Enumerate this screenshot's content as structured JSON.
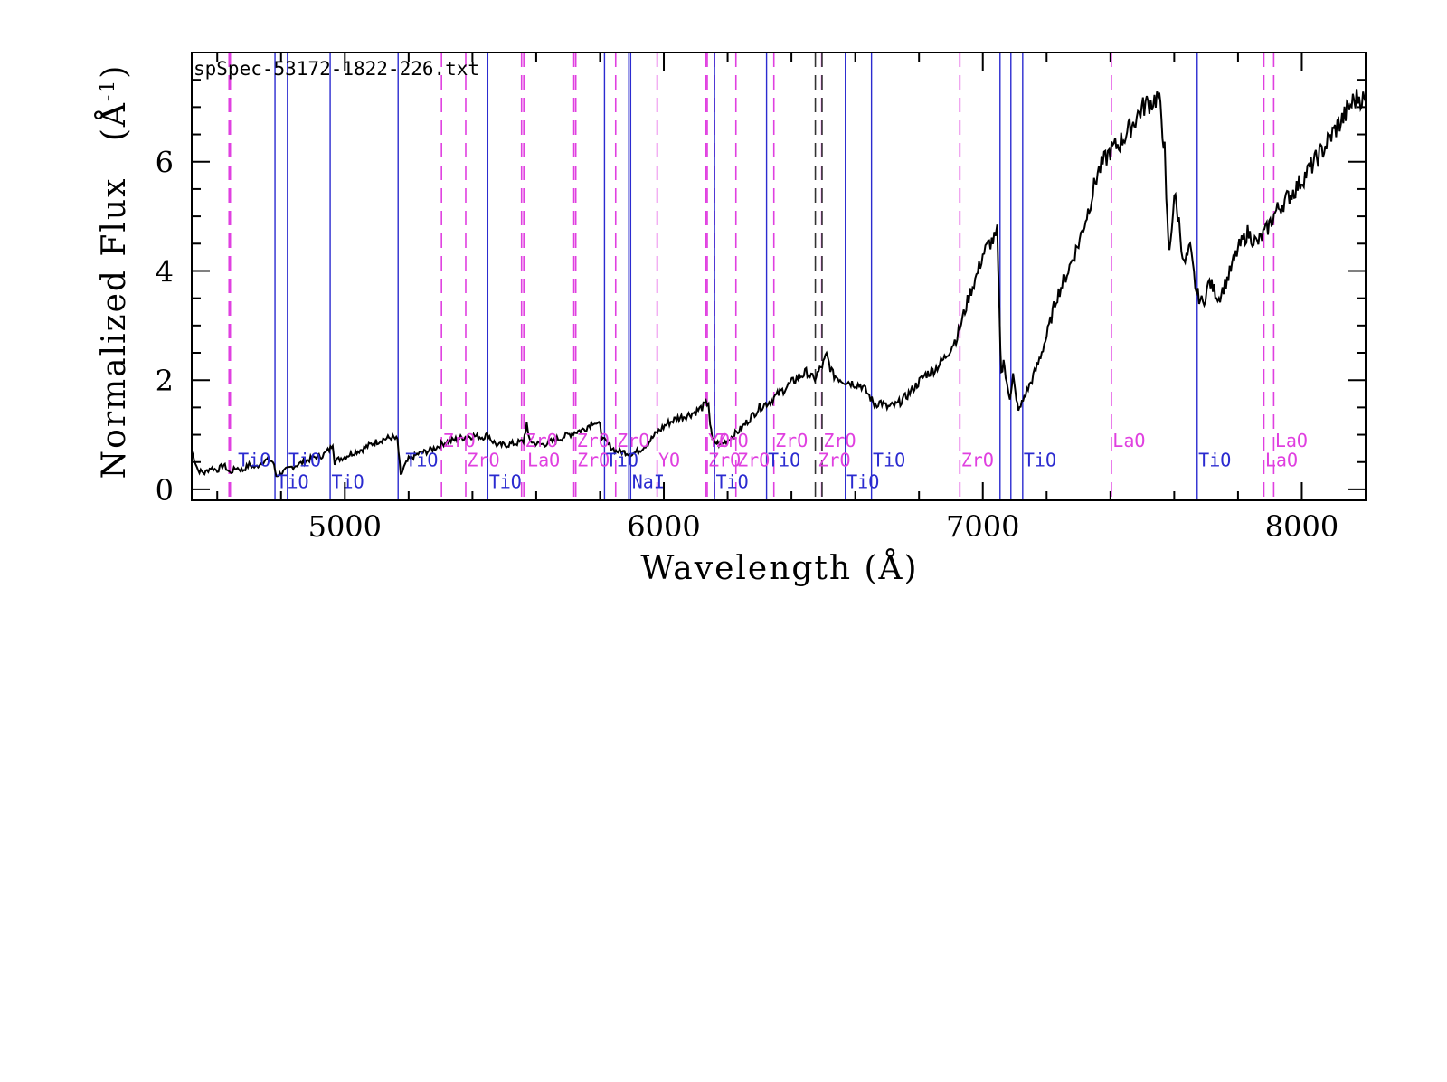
{
  "chart_data": {
    "type": "line",
    "file_label": "spSpec-53172-1822-226.txt",
    "xlabel": "Wavelength (Å)",
    "ylabel": "Normalized Flux",
    "ylabel_unit": "(Å",
    "ylabel_unit_exp": "-1",
    "ylabel_unit_close": ")",
    "xlim": [
      4520,
      8200
    ],
    "ylim": [
      -0.2,
      8.0
    ],
    "x_ticks": [
      5000,
      6000,
      7000,
      8000
    ],
    "x_tick_labels": [
      "5000",
      "6000",
      "7000",
      "8000"
    ],
    "y_ticks": [
      0,
      2,
      4,
      6
    ],
    "y_tick_labels": [
      "0",
      "2",
      "4",
      "6"
    ],
    "colors": {
      "spectrum": "#000000",
      "tio": "#2b2bd0",
      "zro": "#e040e0",
      "dark": "#333333"
    },
    "spectrum": {
      "x": [
        4520,
        4540,
        4560,
        4580,
        4600,
        4620,
        4640,
        4660,
        4680,
        4700,
        4720,
        4740,
        4760,
        4775,
        4785,
        4800,
        4815,
        4830,
        4850,
        4870,
        4900,
        4930,
        4955,
        4962,
        4968,
        4980,
        5000,
        5030,
        5060,
        5090,
        5120,
        5150,
        5165,
        5175,
        5185,
        5200,
        5230,
        5260,
        5290,
        5310,
        5340,
        5370,
        5400,
        5430,
        5450,
        5460,
        5480,
        5510,
        5540,
        5560,
        5570,
        5575,
        5590,
        5620,
        5650,
        5680,
        5700,
        5720,
        5750,
        5780,
        5800,
        5810,
        5830,
        5850,
        5880,
        5900,
        5920,
        5950,
        5980,
        6010,
        6040,
        6070,
        6100,
        6120,
        6140,
        6145,
        6152,
        6165,
        6180,
        6200,
        6220,
        6240,
        6270,
        6300,
        6330,
        6360,
        6390,
        6420,
        6450,
        6470,
        6500,
        6510,
        6530,
        6560,
        6590,
        6620,
        6640,
        6660,
        6680,
        6700,
        6730,
        6760,
        6790,
        6820,
        6850,
        6880,
        6900,
        6920,
        6940,
        6960,
        6980,
        7000,
        7020,
        7040,
        7045,
        7052,
        7058,
        7065,
        7075,
        7085,
        7095,
        7105,
        7115,
        7130,
        7150,
        7170,
        7200,
        7230,
        7260,
        7300,
        7330,
        7360,
        7400,
        7430,
        7460,
        7490,
        7510,
        7530,
        7550,
        7560,
        7570,
        7575,
        7585,
        7600,
        7615,
        7630,
        7650,
        7670,
        7690,
        7710,
        7740,
        7770,
        7800,
        7830,
        7860,
        7890,
        7920,
        7950,
        7980,
        8010,
        8040,
        8070,
        8100,
        8130,
        8160,
        8180,
        8200
      ],
      "y": [
        0.7,
        0.35,
        0.3,
        0.4,
        0.35,
        0.45,
        0.3,
        0.4,
        0.35,
        0.45,
        0.4,
        0.5,
        0.55,
        0.5,
        0.25,
        0.3,
        0.35,
        0.4,
        0.45,
        0.5,
        0.58,
        0.62,
        0.75,
        0.85,
        0.5,
        0.55,
        0.6,
        0.68,
        0.75,
        0.85,
        0.92,
        0.95,
        0.9,
        0.25,
        0.4,
        0.55,
        0.65,
        0.7,
        0.78,
        0.85,
        0.9,
        0.95,
        0.98,
        0.96,
        1.0,
        0.9,
        0.8,
        0.82,
        0.85,
        0.88,
        1.2,
        0.95,
        0.85,
        0.82,
        0.88,
        0.95,
        1.0,
        1.05,
        1.1,
        1.25,
        1.15,
        0.9,
        0.8,
        0.7,
        0.68,
        0.65,
        0.7,
        0.85,
        1.05,
        1.2,
        1.3,
        1.35,
        1.42,
        1.5,
        1.6,
        1.2,
        0.9,
        0.85,
        0.82,
        0.9,
        1.0,
        1.1,
        1.3,
        1.5,
        1.6,
        1.75,
        1.9,
        2.05,
        2.15,
        2.0,
        2.3,
        2.45,
        2.1,
        2.0,
        1.95,
        1.9,
        1.75,
        1.55,
        1.6,
        1.5,
        1.55,
        1.7,
        1.9,
        2.1,
        2.2,
        2.4,
        2.6,
        2.8,
        3.2,
        3.6,
        3.9,
        4.3,
        4.5,
        4.6,
        4.7,
        3.2,
        2.1,
        2.4,
        1.9,
        1.7,
        2.1,
        1.6,
        1.45,
        1.7,
        1.95,
        2.25,
        2.8,
        3.5,
        3.9,
        4.5,
        5.1,
        5.8,
        6.2,
        6.35,
        6.6,
        6.9,
        7.05,
        7.1,
        7.2,
        6.8,
        6.2,
        5.2,
        4.3,
        5.4,
        4.9,
        4.1,
        4.4,
        3.6,
        3.4,
        3.8,
        3.5,
        3.9,
        4.4,
        4.7,
        4.5,
        4.75,
        5.1,
        5.3,
        5.5,
        5.75,
        6.0,
        6.25,
        6.55,
        6.8,
        7.1,
        7.2,
        7.1
      ]
    },
    "tio_lines": [
      4781,
      4820,
      4954,
      5167,
      5448,
      5814,
      5890,
      5896,
      6159,
      6322,
      6569,
      6651,
      7054,
      7088,
      7125,
      7672
    ],
    "zro_lines": [
      4637,
      4641,
      5303,
      5379,
      5554,
      5561,
      5718,
      5724,
      5849,
      5979,
      6132,
      6136,
      6159,
      6226,
      6345,
      6495,
      6928,
      7403,
      7881,
      7912
    ],
    "dark_lines": [
      6475,
      6496
    ],
    "labels": [
      {
        "text": "TiO",
        "x": 4665,
        "y": 0.42,
        "color": "tio"
      },
      {
        "text": "TiO",
        "x": 4785,
        "y": 0.02,
        "color": "tio"
      },
      {
        "text": "TiO",
        "x": 4823,
        "y": 0.42,
        "color": "tio"
      },
      {
        "text": "TiO",
        "x": 4958,
        "y": 0.02,
        "color": "tio"
      },
      {
        "text": "TiO",
        "x": 5190,
        "y": 0.42,
        "color": "tio"
      },
      {
        "text": "ZrO",
        "x": 5307,
        "y": 0.78,
        "color": "zro"
      },
      {
        "text": "ZrO",
        "x": 5383,
        "y": 0.42,
        "color": "zro"
      },
      {
        "text": "TiO",
        "x": 5452,
        "y": 0.02,
        "color": "tio"
      },
      {
        "text": "ZrO",
        "x": 5565,
        "y": 0.78,
        "color": "zro"
      },
      {
        "text": "LaO",
        "x": 5572,
        "y": 0.42,
        "color": "zro"
      },
      {
        "text": "ZrO",
        "x": 5727,
        "y": 0.78,
        "color": "zro"
      },
      {
        "text": "ZrO",
        "x": 5728,
        "y": 0.42,
        "color": "zro"
      },
      {
        "text": "TiO",
        "x": 5818,
        "y": 0.42,
        "color": "tio"
      },
      {
        "text": "ZrO",
        "x": 5853,
        "y": 0.78,
        "color": "zro"
      },
      {
        "text": "NaI",
        "x": 5900,
        "y": 0.02,
        "color": "tio"
      },
      {
        "text": "YO",
        "x": 5983,
        "y": 0.42,
        "color": "zro"
      },
      {
        "text": "YO",
        "x": 6139,
        "y": 0.78,
        "color": "zro"
      },
      {
        "text": "ZrO",
        "x": 6163,
        "y": 0.78,
        "color": "zro"
      },
      {
        "text": "ZrO",
        "x": 6139,
        "y": 0.42,
        "color": "zro"
      },
      {
        "text": "TiO",
        "x": 6163,
        "y": 0.02,
        "color": "tio"
      },
      {
        "text": "ZrO",
        "x": 6230,
        "y": 0.42,
        "color": "zro"
      },
      {
        "text": "TiO",
        "x": 6326,
        "y": 0.42,
        "color": "tio"
      },
      {
        "text": "ZrO",
        "x": 6349,
        "y": 0.78,
        "color": "zro"
      },
      {
        "text": "ZrO",
        "x": 6500,
        "y": 0.78,
        "color": "zro"
      },
      {
        "text": "ZrO",
        "x": 6483,
        "y": 0.42,
        "color": "zro"
      },
      {
        "text": "TiO",
        "x": 6573,
        "y": 0.02,
        "color": "tio"
      },
      {
        "text": "TiO",
        "x": 6655,
        "y": 0.42,
        "color": "tio"
      },
      {
        "text": "ZrO",
        "x": 6932,
        "y": 0.42,
        "color": "zro"
      },
      {
        "text": "TiO",
        "x": 7128,
        "y": 0.42,
        "color": "tio"
      },
      {
        "text": "LaO",
        "x": 7407,
        "y": 0.78,
        "color": "zro"
      },
      {
        "text": "TiO",
        "x": 7676,
        "y": 0.42,
        "color": "tio"
      },
      {
        "text": "LaO",
        "x": 7916,
        "y": 0.78,
        "color": "zro"
      },
      {
        "text": "LaO",
        "x": 7885,
        "y": 0.42,
        "color": "zro"
      }
    ],
    "grid": false
  }
}
